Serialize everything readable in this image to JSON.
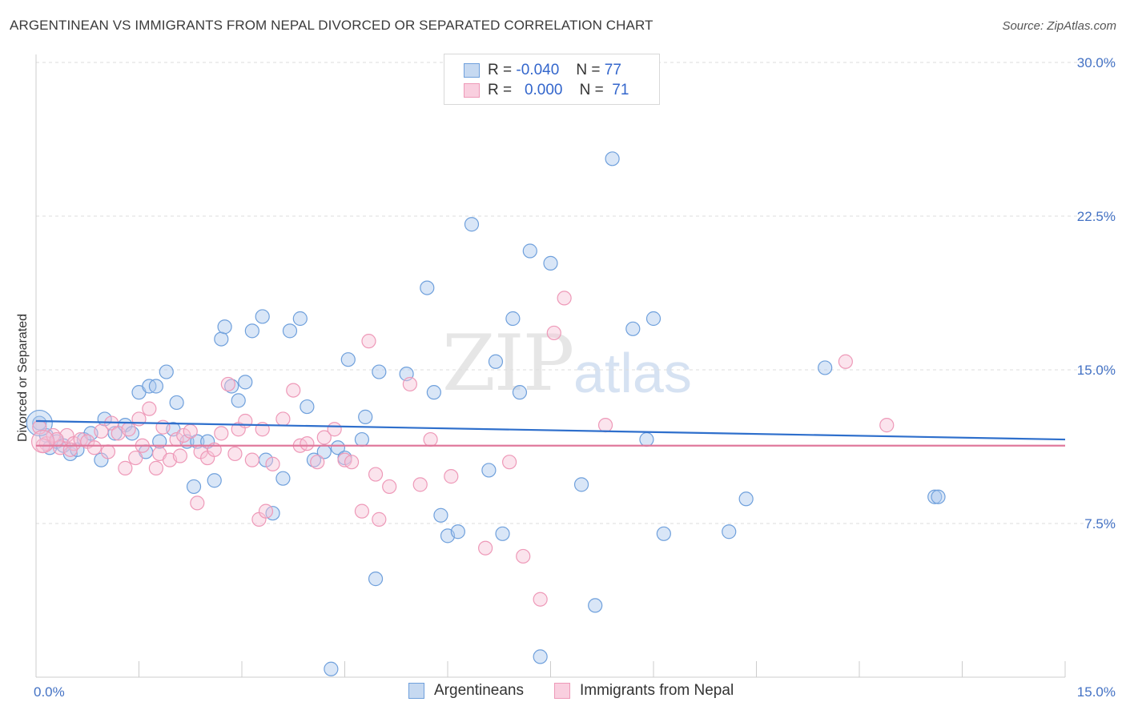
{
  "title": "ARGENTINEAN VS IMMIGRANTS FROM NEPAL DIVORCED OR SEPARATED CORRELATION CHART",
  "source": "Source: ZipAtlas.com",
  "watermark": {
    "a": "ZIP",
    "b": "atlas"
  },
  "colors": {
    "blue": "#6fa0dc",
    "blue_fill": "#aac8ee",
    "pink": "#ee99b8",
    "pink_fill": "#f7c3d6",
    "blue_line": "#2e6fcc",
    "pink_line": "#e0799c",
    "tick_text": "#4472c4"
  },
  "legend_top": [
    {
      "r_label": "R =",
      "r_value": "-0.040",
      "n_label": "N =",
      "n_value": "77"
    },
    {
      "r_label": "R =",
      "r_value": "0.000",
      "n_label": "N =",
      "n_value": "71"
    }
  ],
  "chart_data": {
    "type": "scatter",
    "title": "ARGENTINEAN VS IMMIGRANTS FROM NEPAL DIVORCED OR SEPARATED CORRELATION CHART",
    "xlabel": "",
    "ylabel": "Divorced or Separated",
    "xlim": [
      0,
      15
    ],
    "ylim": [
      0,
      30.0
    ],
    "x_tick_labels": [
      "0.0%",
      "15.0%"
    ],
    "y_ticks": [
      7.5,
      15.0,
      22.5,
      30.0
    ],
    "y_tick_labels": [
      "7.5%",
      "15.0%",
      "22.5%",
      "30.0%"
    ],
    "grid": "horizontal dashed",
    "legend_position": "bottom-center",
    "series": [
      {
        "name": "Argentineans",
        "trend": {
          "x": [
            0,
            15
          ],
          "y": [
            12.5,
            11.6
          ]
        },
        "points": [
          [
            0.05,
            12.4
          ],
          [
            0.15,
            11.8
          ],
          [
            0.2,
            11.2
          ],
          [
            0.3,
            11.5
          ],
          [
            0.4,
            11.3
          ],
          [
            0.5,
            10.9
          ],
          [
            0.6,
            11.1
          ],
          [
            0.7,
            11.6
          ],
          [
            0.8,
            11.9
          ],
          [
            0.95,
            10.6
          ],
          [
            1.0,
            12.6
          ],
          [
            1.15,
            11.9
          ],
          [
            1.3,
            12.3
          ],
          [
            1.4,
            11.9
          ],
          [
            1.5,
            13.9
          ],
          [
            1.6,
            11.0
          ],
          [
            1.65,
            14.2
          ],
          [
            1.75,
            14.2
          ],
          [
            1.8,
            11.5
          ],
          [
            1.9,
            14.9
          ],
          [
            2.0,
            12.1
          ],
          [
            2.05,
            13.4
          ],
          [
            2.2,
            11.5
          ],
          [
            2.3,
            9.3
          ],
          [
            2.35,
            11.5
          ],
          [
            2.5,
            11.5
          ],
          [
            2.6,
            9.6
          ],
          [
            2.7,
            16.5
          ],
          [
            2.75,
            17.1
          ],
          [
            2.85,
            14.2
          ],
          [
            2.95,
            13.5
          ],
          [
            3.05,
            14.4
          ],
          [
            3.15,
            16.9
          ],
          [
            3.3,
            17.6
          ],
          [
            3.35,
            10.6
          ],
          [
            3.45,
            8.0
          ],
          [
            3.6,
            9.7
          ],
          [
            3.7,
            16.9
          ],
          [
            3.85,
            17.5
          ],
          [
            3.95,
            13.2
          ],
          [
            4.05,
            10.6
          ],
          [
            4.2,
            11.0
          ],
          [
            4.3,
            0.4
          ],
          [
            4.4,
            11.2
          ],
          [
            4.5,
            10.7
          ],
          [
            4.55,
            15.5
          ],
          [
            4.75,
            11.6
          ],
          [
            4.8,
            12.7
          ],
          [
            4.95,
            4.8
          ],
          [
            5.0,
            14.9
          ],
          [
            5.4,
            14.8
          ],
          [
            5.7,
            19.0
          ],
          [
            5.8,
            13.9
          ],
          [
            5.9,
            7.9
          ],
          [
            6.0,
            6.9
          ],
          [
            6.15,
            7.1
          ],
          [
            6.35,
            22.1
          ],
          [
            6.6,
            10.1
          ],
          [
            6.7,
            15.4
          ],
          [
            6.8,
            7.0
          ],
          [
            6.95,
            17.5
          ],
          [
            7.05,
            13.9
          ],
          [
            7.2,
            20.8
          ],
          [
            7.35,
            1.0
          ],
          [
            7.5,
            20.2
          ],
          [
            7.95,
            9.4
          ],
          [
            8.15,
            3.5
          ],
          [
            8.4,
            25.3
          ],
          [
            8.7,
            17.0
          ],
          [
            8.9,
            11.6
          ],
          [
            9.0,
            17.5
          ],
          [
            9.15,
            7.0
          ],
          [
            10.1,
            7.1
          ],
          [
            10.35,
            8.7
          ],
          [
            11.5,
            15.1
          ],
          [
            13.1,
            8.8
          ],
          [
            13.15,
            8.8
          ]
        ]
      },
      {
        "name": "Immigrants from Nepal",
        "trend": {
          "x": [
            0,
            15
          ],
          "y": [
            11.3,
            11.3
          ]
        },
        "points": [
          [
            0.05,
            12.2
          ],
          [
            0.15,
            11.4
          ],
          [
            0.25,
            11.8
          ],
          [
            0.35,
            11.2
          ],
          [
            0.45,
            11.8
          ],
          [
            0.55,
            11.4
          ],
          [
            0.65,
            11.6
          ],
          [
            0.75,
            11.5
          ],
          [
            0.85,
            11.2
          ],
          [
            0.95,
            12.0
          ],
          [
            1.05,
            11.0
          ],
          [
            1.1,
            12.4
          ],
          [
            1.2,
            11.9
          ],
          [
            1.3,
            10.2
          ],
          [
            1.35,
            12.1
          ],
          [
            1.45,
            10.7
          ],
          [
            1.5,
            12.6
          ],
          [
            1.55,
            11.3
          ],
          [
            1.65,
            13.1
          ],
          [
            1.75,
            10.2
          ],
          [
            1.8,
            10.9
          ],
          [
            1.85,
            12.2
          ],
          [
            1.95,
            10.6
          ],
          [
            2.05,
            11.6
          ],
          [
            2.1,
            10.8
          ],
          [
            2.15,
            11.8
          ],
          [
            2.25,
            12.0
          ],
          [
            2.35,
            8.5
          ],
          [
            2.4,
            11.0
          ],
          [
            2.5,
            10.7
          ],
          [
            2.6,
            11.1
          ],
          [
            2.7,
            11.9
          ],
          [
            2.8,
            14.3
          ],
          [
            2.9,
            10.9
          ],
          [
            2.95,
            12.1
          ],
          [
            3.05,
            12.5
          ],
          [
            3.15,
            10.6
          ],
          [
            3.25,
            7.7
          ],
          [
            3.3,
            12.1
          ],
          [
            3.35,
            8.1
          ],
          [
            3.45,
            10.4
          ],
          [
            3.6,
            12.6
          ],
          [
            3.75,
            14.0
          ],
          [
            3.85,
            11.3
          ],
          [
            3.95,
            11.4
          ],
          [
            4.1,
            10.5
          ],
          [
            4.2,
            11.7
          ],
          [
            4.35,
            12.1
          ],
          [
            4.5,
            10.6
          ],
          [
            4.6,
            10.5
          ],
          [
            4.75,
            8.1
          ],
          [
            4.85,
            16.4
          ],
          [
            4.95,
            9.9
          ],
          [
            5.0,
            7.7
          ],
          [
            5.15,
            9.3
          ],
          [
            5.45,
            14.3
          ],
          [
            5.6,
            9.4
          ],
          [
            5.75,
            11.6
          ],
          [
            6.05,
            9.8
          ],
          [
            6.55,
            6.3
          ],
          [
            6.9,
            10.5
          ],
          [
            7.1,
            5.9
          ],
          [
            7.35,
            3.8
          ],
          [
            7.55,
            16.8
          ],
          [
            7.7,
            18.5
          ],
          [
            8.3,
            12.3
          ],
          [
            11.8,
            15.4
          ],
          [
            12.4,
            12.3
          ],
          [
            0.1,
            11.3
          ],
          [
            0.3,
            11.6
          ],
          [
            0.5,
            11.1
          ]
        ]
      }
    ]
  },
  "legend_bottom": [
    {
      "label": "Argentineans"
    },
    {
      "label": "Immigrants from Nepal"
    }
  ]
}
